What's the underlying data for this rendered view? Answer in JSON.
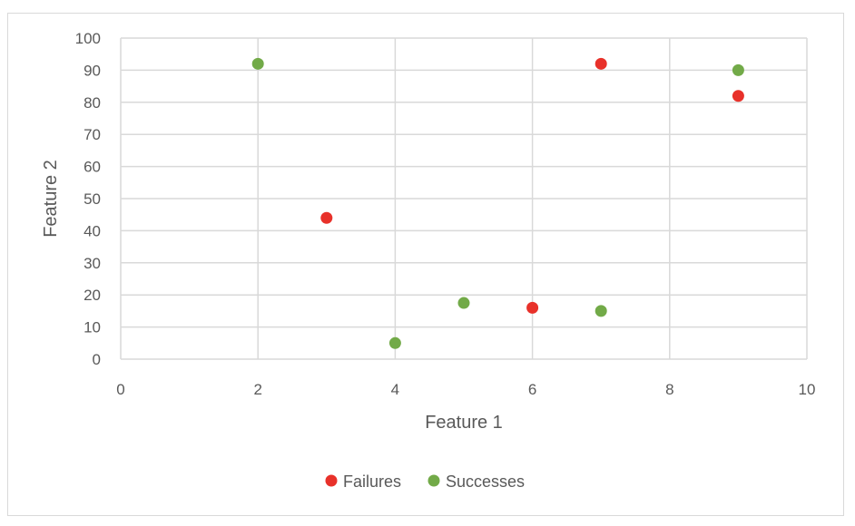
{
  "chart_data": {
    "type": "scatter",
    "title": "",
    "xlabel": "Feature 1",
    "ylabel": "Feature 2",
    "xlim": [
      0,
      10
    ],
    "ylim": [
      0,
      100
    ],
    "xticks": [
      0,
      2,
      4,
      6,
      8,
      10
    ],
    "yticks": [
      0,
      10,
      20,
      30,
      40,
      50,
      60,
      70,
      80,
      90,
      100
    ],
    "grid": true,
    "legend_position": "bottom",
    "series": [
      {
        "name": "Failures",
        "color": "#e8312a",
        "points": [
          {
            "x": 3,
            "y": 44
          },
          {
            "x": 6,
            "y": 16
          },
          {
            "x": 7,
            "y": 92
          },
          {
            "x": 9,
            "y": 82
          }
        ]
      },
      {
        "name": "Successes",
        "color": "#72aa48",
        "points": [
          {
            "x": 2,
            "y": 92
          },
          {
            "x": 4,
            "y": 5
          },
          {
            "x": 5,
            "y": 17.5
          },
          {
            "x": 7,
            "y": 15
          },
          {
            "x": 9,
            "y": 90
          }
        ]
      }
    ]
  }
}
